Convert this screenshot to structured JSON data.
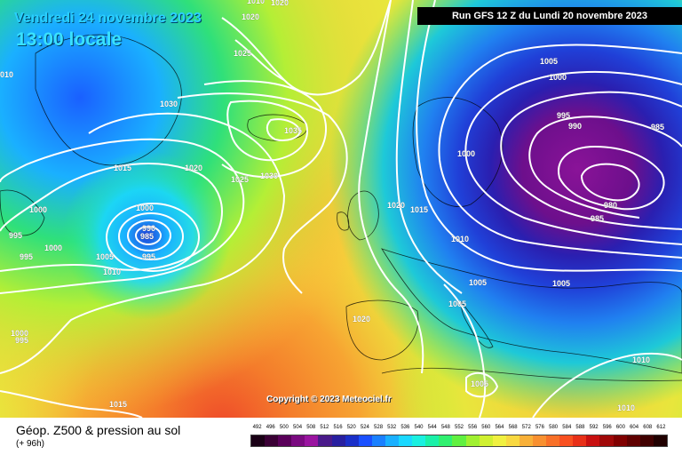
{
  "header": {
    "date": "Vendredi 24 novembre 2023",
    "time": "13:00 locale",
    "run": "Run GFS 12 Z du Lundi 20 novembre 2023"
  },
  "copyright": "Copyright © 2023 Meteociel.fr",
  "footer": {
    "param_title": "Géop. Z500 & pression au sol",
    "param_sub": "(+ 96h)"
  },
  "legend": {
    "values": [
      "492",
      "496",
      "500",
      "504",
      "508",
      "512",
      "516",
      "520",
      "524",
      "528",
      "532",
      "536",
      "540",
      "544",
      "548",
      "552",
      "556",
      "560",
      "564",
      "568",
      "572",
      "576",
      "580",
      "584",
      "588",
      "592",
      "596",
      "600",
      "604",
      "608",
      "612"
    ],
    "colors": [
      "#1a0016",
      "#3a0035",
      "#5a005a",
      "#7a0a80",
      "#9a14a0",
      "#4a1a8a",
      "#281fa0",
      "#1a2fc8",
      "#1a50ff",
      "#1a80ff",
      "#1ab0ff",
      "#1ad8ff",
      "#1af0e0",
      "#1af0a8",
      "#30f070",
      "#60f040",
      "#a0f030",
      "#d0f030",
      "#f0f040",
      "#f8d840",
      "#f8b038",
      "#f89030",
      "#f87028",
      "#f85020",
      "#e83018",
      "#c81010",
      "#a00808",
      "#800000",
      "#600000",
      "#400000",
      "#200000"
    ]
  },
  "pressure_labels": [
    {
      "text": "1020"
    },
    {
      "text": "1020"
    },
    {
      "text": "1025"
    },
    {
      "text": "1030"
    },
    {
      "text": "1035"
    },
    {
      "text": "1015"
    },
    {
      "text": "1020"
    },
    {
      "text": "1025"
    },
    {
      "text": "1030"
    },
    {
      "text": "1000"
    },
    {
      "text": "990"
    },
    {
      "text": "985"
    },
    {
      "text": "995"
    },
    {
      "text": "1000"
    },
    {
      "text": "995"
    },
    {
      "text": "995"
    },
    {
      "text": "1000"
    },
    {
      "text": "1005"
    },
    {
      "text": "1010"
    },
    {
      "text": "1000"
    },
    {
      "text": "995"
    },
    {
      "text": "1020"
    },
    {
      "text": "1015"
    },
    {
      "text": "1010"
    },
    {
      "text": "1005"
    },
    {
      "text": "1000"
    },
    {
      "text": "995"
    },
    {
      "text": "990"
    },
    {
      "text": "985"
    },
    {
      "text": "1000"
    },
    {
      "text": "980"
    },
    {
      "text": "985"
    },
    {
      "text": "1005"
    },
    {
      "text": "1005"
    },
    {
      "text": "1005"
    },
    {
      "text": "1020"
    },
    {
      "text": "1010"
    },
    {
      "text": "1005"
    },
    {
      "text": "1010"
    },
    {
      "text": "1015"
    },
    {
      "text": "1010"
    },
    {
      "text": "010"
    }
  ],
  "field_palette": [
    "#ef4a2a",
    "#f47d2b",
    "#f7a432",
    "#f9c93a",
    "#e8e63c",
    "#b4ef36",
    "#6fe93a",
    "#2fe07a",
    "#1ec9d8",
    "#22aee8",
    "#2080f0",
    "#2040d8",
    "#2a1fb0",
    "#4a1590",
    "#6d0f8c",
    "#8a1398"
  ]
}
